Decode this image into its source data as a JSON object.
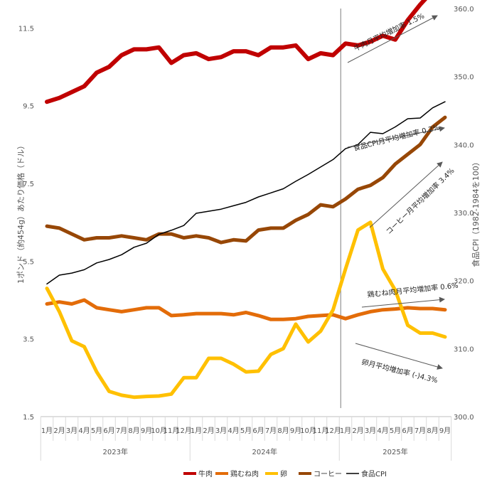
{
  "chart_data": {
    "type": "line",
    "x_labels": [
      "1月",
      "2月",
      "3月",
      "4月",
      "5月",
      "6月",
      "7月",
      "8月",
      "9月",
      "10月",
      "11月",
      "12月",
      "1月",
      "2月",
      "3月",
      "4月",
      "5月",
      "6月",
      "7月",
      "8月",
      "9月",
      "10月",
      "11月",
      "12月",
      "1月",
      "2月",
      "3月",
      "4月",
      "5月",
      "6月",
      "7月",
      "8月",
      "9月"
    ],
    "years": [
      {
        "label": "2023年",
        "months": 12
      },
      {
        "label": "2024年",
        "months": 12
      },
      {
        "label": "2025年",
        "months": 9
      }
    ],
    "ylabel_left": "1ポンド（約454g）あたり価格（ドル）",
    "ylabel_right": "食品CPI（1982-1984を100）",
    "ylim_left": [
      1.5,
      12.0
    ],
    "ylim_right": [
      300,
      360
    ],
    "yticks_left": [
      "1.5",
      "3.5",
      "5.5",
      "7.5",
      "9.5",
      "11.5"
    ],
    "yticks_right": [
      "300.0",
      "310.0",
      "320.0",
      "330.0",
      "340.0",
      "350.0",
      "360.0"
    ],
    "series": [
      {
        "name": "牛肉",
        "axis": "left",
        "color": "#c00000",
        "width": 6,
        "values": [
          9.6,
          9.7,
          9.85,
          10.0,
          10.35,
          10.5,
          10.8,
          10.95,
          10.95,
          11.0,
          10.6,
          10.8,
          10.85,
          10.7,
          10.75,
          10.9,
          10.9,
          10.8,
          11.0,
          11.0,
          11.05,
          10.7,
          10.85,
          10.8,
          11.1,
          11.05,
          11.15,
          11.3,
          11.2,
          11.7,
          12.1,
          12.45,
          12.5
        ]
      },
      {
        "name": "鶏むね肉",
        "axis": "left",
        "color": "#e36c09",
        "width": 5,
        "values": [
          4.4,
          4.45,
          4.4,
          4.5,
          4.3,
          4.25,
          4.2,
          4.25,
          4.3,
          4.3,
          4.1,
          4.12,
          4.15,
          4.15,
          4.15,
          4.12,
          4.18,
          4.1,
          4.0,
          4.0,
          4.02,
          4.08,
          4.1,
          4.12,
          4.02,
          4.12,
          4.2,
          4.25,
          4.27,
          4.3,
          4.28,
          4.28,
          4.25
        ]
      },
      {
        "name": "卵",
        "axis": "left",
        "color": "#ffc000",
        "width": 5,
        "values": [
          4.8,
          4.2,
          3.45,
          3.3,
          2.65,
          2.15,
          2.05,
          2.0,
          2.02,
          2.03,
          2.08,
          2.5,
          2.5,
          3.0,
          3.0,
          2.85,
          2.65,
          2.67,
          3.1,
          3.25,
          3.88,
          3.42,
          3.7,
          4.25,
          5.3,
          6.3,
          6.5,
          5.3,
          4.75,
          3.85,
          3.65,
          3.65,
          3.55
        ]
      },
      {
        "name": "コーヒー",
        "axis": "left",
        "color": "#974706",
        "width": 5,
        "values": [
          6.4,
          6.35,
          6.2,
          6.05,
          6.1,
          6.1,
          6.15,
          6.1,
          6.05,
          6.2,
          6.2,
          6.1,
          6.15,
          6.1,
          5.98,
          6.05,
          6.02,
          6.3,
          6.35,
          6.35,
          6.55,
          6.7,
          6.95,
          6.9,
          7.1,
          7.35,
          7.45,
          7.65,
          8.0,
          8.25,
          8.5,
          8.95,
          9.2
        ]
      },
      {
        "name": "食品CPI",
        "axis": "right",
        "color": "#000000",
        "width": 1.5,
        "values": [
          319.5,
          320.8,
          321.1,
          321.6,
          322.6,
          323.1,
          323.8,
          324.9,
          325.5,
          326.8,
          327.4,
          328.1,
          329.9,
          330.2,
          330.5,
          331.0,
          331.5,
          332.3,
          332.9,
          333.5,
          334.6,
          335.6,
          336.7,
          337.8,
          339.4,
          340.0,
          341.8,
          341.6,
          342.6,
          343.8,
          343.9,
          345.4,
          346.3
        ]
      }
    ],
    "annotations": [
      {
        "text": "牛肉月平均増加率 1.5%"
      },
      {
        "text": "食品CPI月平均増加率 0.2%"
      },
      {
        "text": "コーヒー月平均増加率 3.4%"
      },
      {
        "text": "鶏むね肉月平均増加率 0.6%"
      },
      {
        "text": "卵月平均増加率 (-)4.3%"
      }
    ],
    "legend_position": "bottom",
    "grid": false
  }
}
